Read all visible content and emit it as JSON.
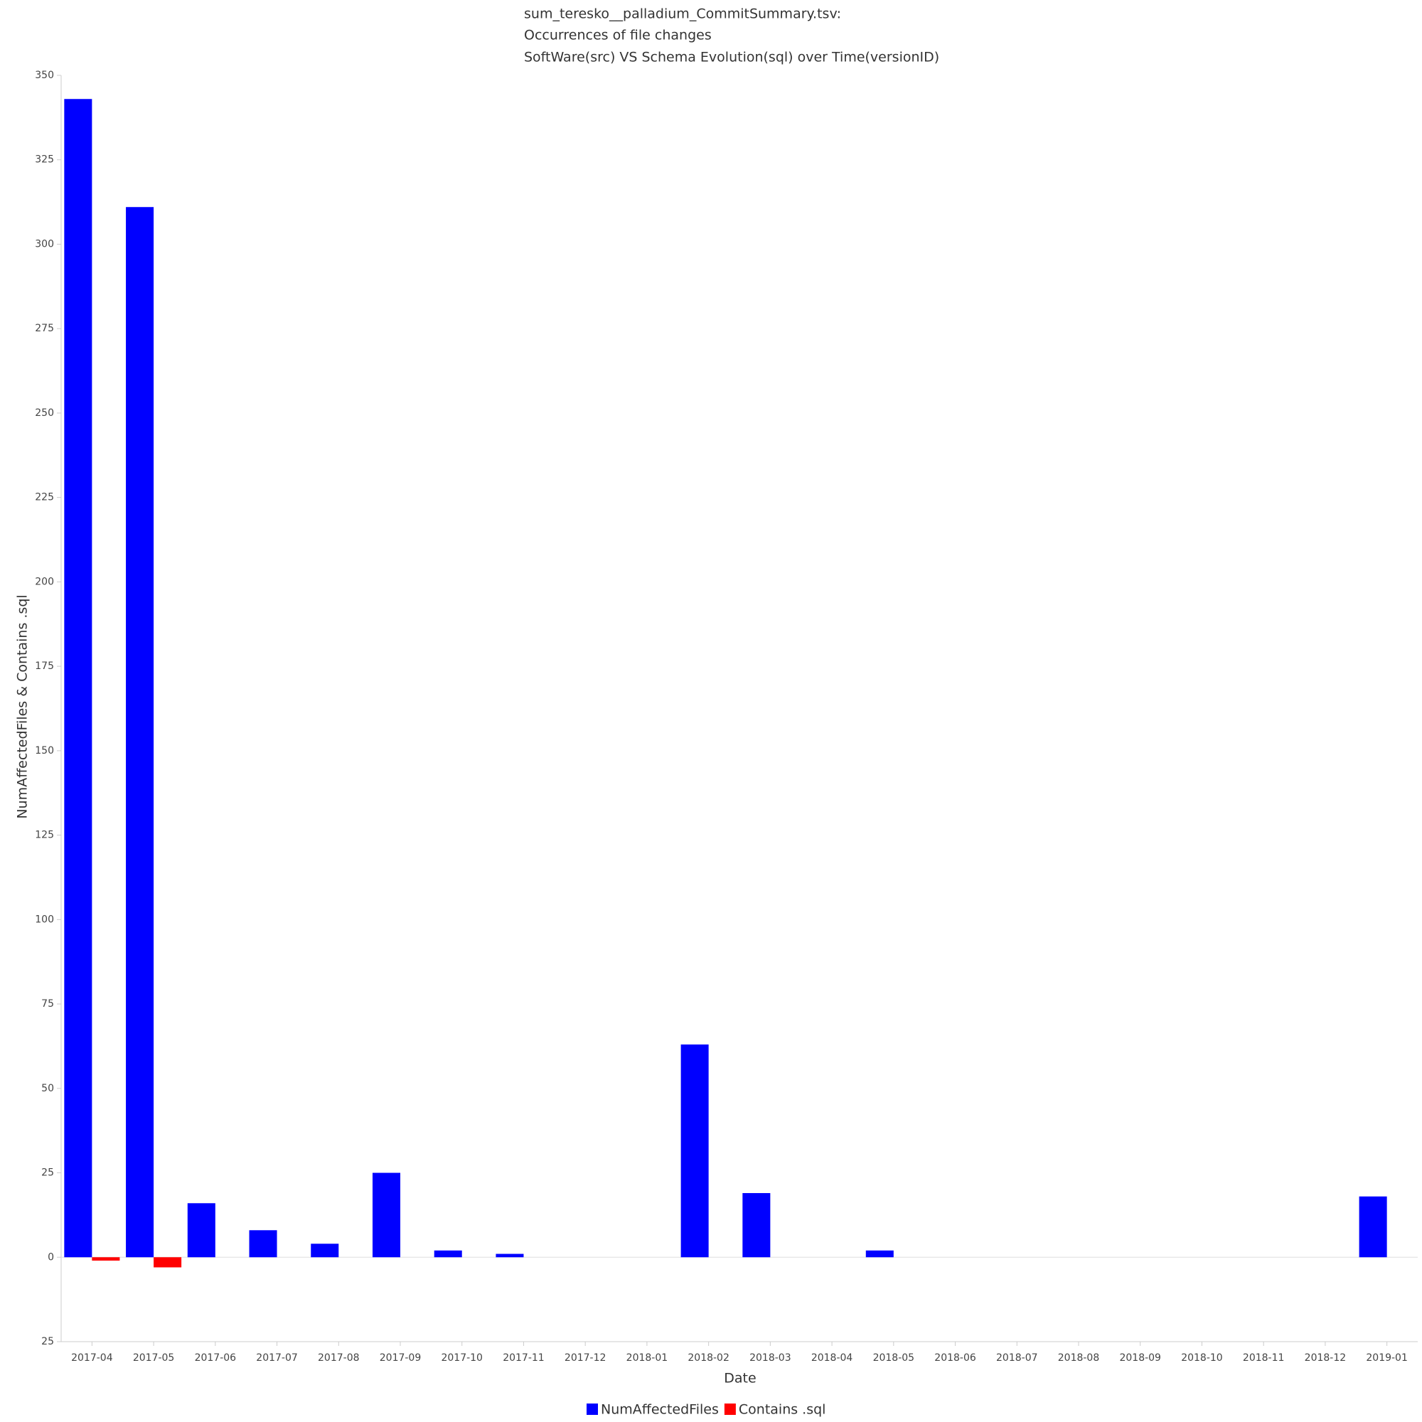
{
  "chart_data": {
    "type": "bar",
    "title_lines": [
      "sum_teresko__palladium_CommitSummary.tsv:",
      "Occurrences of file changes",
      "SoftWare(src) VS Schema Evolution(sql) over Time(versionID)"
    ],
    "x_label": "Date",
    "y_label": "NumAffectedFiles & Contains .sql",
    "categories": [
      "2017-04",
      "2017-05",
      "2017-06",
      "2017-07",
      "2017-08",
      "2017-09",
      "2017-10",
      "2017-11",
      "2017-12",
      "2018-01",
      "2018-02",
      "2018-03",
      "2018-04",
      "2018-05",
      "2018-06",
      "2018-07",
      "2018-08",
      "2018-09",
      "2018-10",
      "2018-11",
      "2018-12",
      "2019-01"
    ],
    "series": [
      {
        "name": "NumAffectedFiles",
        "color": "#0000ff",
        "values": [
          343,
          311,
          16,
          8,
          4,
          25,
          2,
          1,
          0,
          0,
          63,
          19,
          0,
          2,
          0,
          0,
          0,
          0,
          0,
          0,
          0,
          18
        ]
      },
      {
        "name": "Contains .sql",
        "color": "#ff0000",
        "values": [
          -1,
          -3,
          0,
          0,
          0,
          0,
          0,
          0,
          0,
          0,
          0,
          0,
          0,
          0,
          0,
          0,
          0,
          0,
          0,
          0,
          0,
          0
        ]
      }
    ],
    "ylim": [
      -25,
      350
    ],
    "yticks": [
      {
        "value": -25,
        "label": "25"
      },
      0,
      25,
      50,
      75,
      100,
      125,
      150,
      175,
      200,
      225,
      250,
      275,
      300,
      325,
      350
    ],
    "grid": false
  }
}
